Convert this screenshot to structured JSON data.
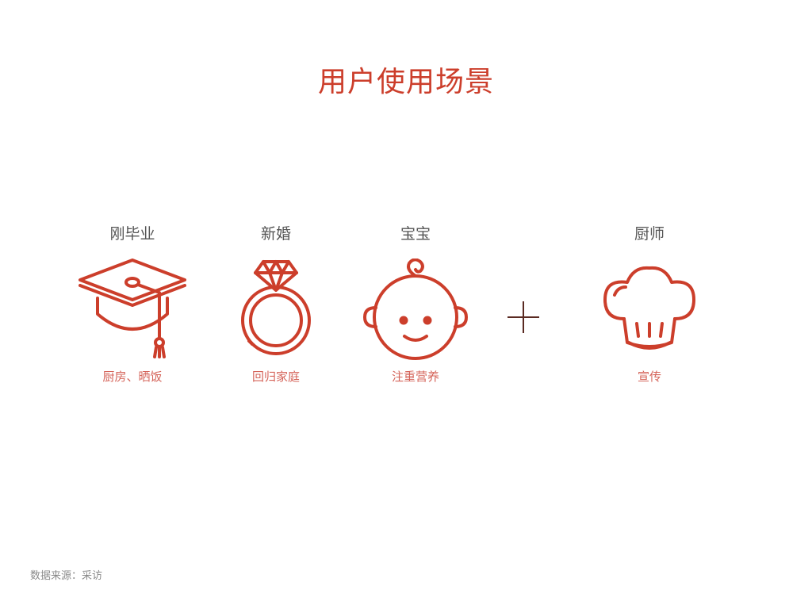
{
  "title": "用户使用场景",
  "theme": {
    "accent": "#cc3e2b",
    "caption": "#d5645a",
    "label": "#555555",
    "plus": "#5a2a22"
  },
  "scenarios": [
    {
      "label": "刚毕业",
      "icon": "graduation-cap-icon",
      "caption": "厨房、晒饭"
    },
    {
      "label": "新婚",
      "icon": "diamond-ring-icon",
      "caption": "回归家庭"
    },
    {
      "label": "宝宝",
      "icon": "baby-face-icon",
      "caption": "注重营养"
    },
    {
      "label": "厨师",
      "icon": "chef-hat-icon",
      "caption": "宣传"
    }
  ],
  "plus_icon": "plus-icon",
  "source": "数据来源：采访"
}
